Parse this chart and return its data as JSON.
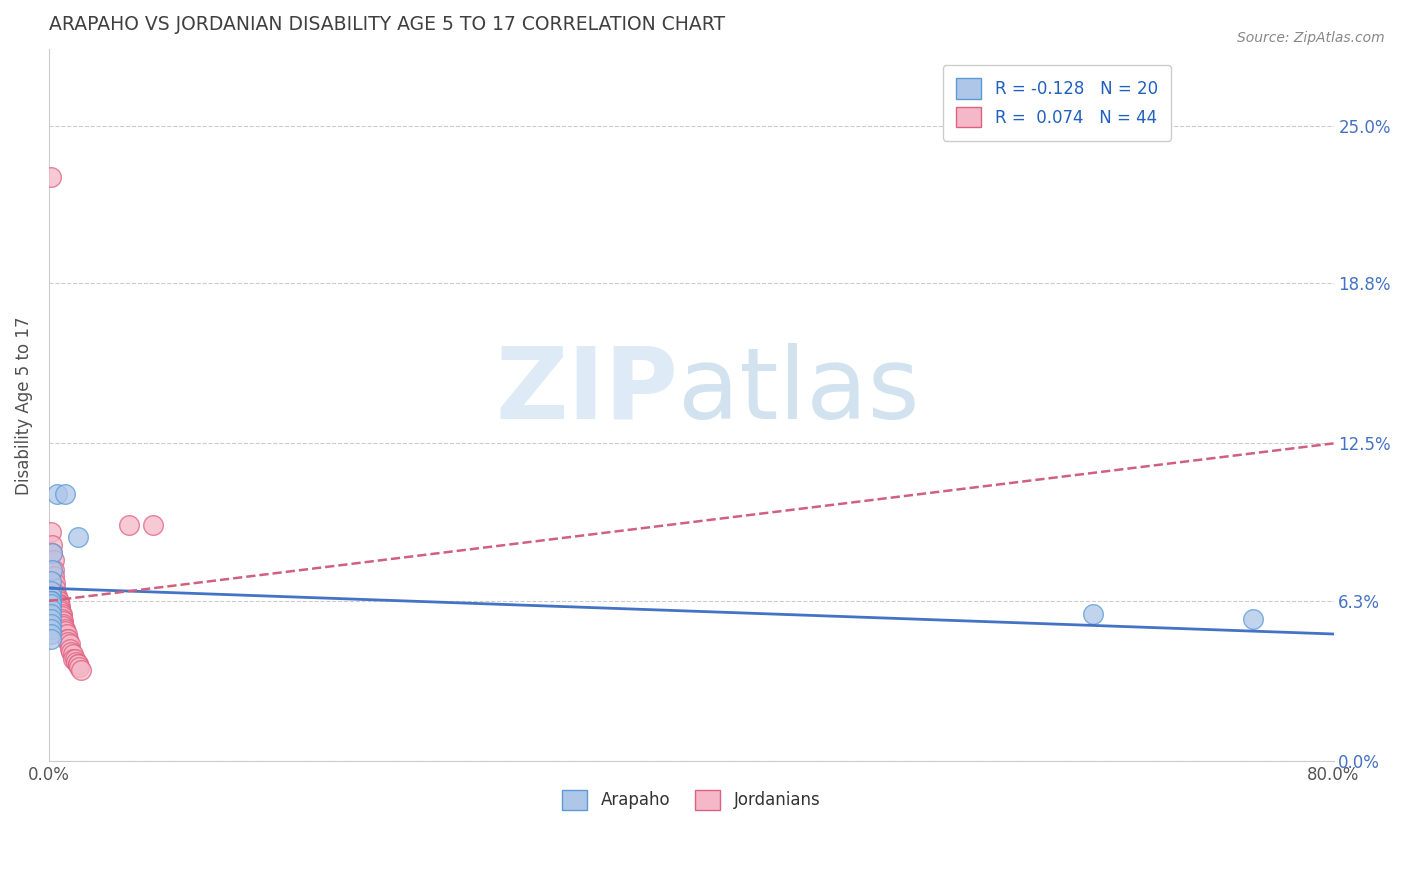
{
  "title": "ARAPAHO VS JORDANIAN DISABILITY AGE 5 TO 17 CORRELATION CHART",
  "source_text": "Source: ZipAtlas.com",
  "ylabel": "Disability Age 5 to 17",
  "xlim": [
    0.0,
    0.8
  ],
  "ylim": [
    0.0,
    0.28
  ],
  "yticks": [
    0.0,
    0.063,
    0.125,
    0.188,
    0.25
  ],
  "ytick_labels": [
    "0.0%",
    "6.3%",
    "12.5%",
    "18.8%",
    "25.0%"
  ],
  "xtick_labels": [
    "0.0%",
    "80.0%"
  ],
  "xtick_positions": [
    0.0,
    0.8
  ],
  "arapaho_scatter": [
    [
      0.005,
      0.105
    ],
    [
      0.01,
      0.105
    ],
    [
      0.018,
      0.088
    ],
    [
      0.002,
      0.082
    ],
    [
      0.002,
      0.075
    ],
    [
      0.001,
      0.071
    ],
    [
      0.001,
      0.067
    ],
    [
      0.001,
      0.065
    ],
    [
      0.001,
      0.063
    ],
    [
      0.001,
      0.063
    ],
    [
      0.001,
      0.063
    ],
    [
      0.001,
      0.063
    ],
    [
      0.001,
      0.062
    ],
    [
      0.001,
      0.06
    ],
    [
      0.001,
      0.058
    ],
    [
      0.001,
      0.056
    ],
    [
      0.001,
      0.054
    ],
    [
      0.001,
      0.052
    ],
    [
      0.001,
      0.05
    ],
    [
      0.001,
      0.048
    ],
    [
      0.65,
      0.058
    ],
    [
      0.75,
      0.056
    ]
  ],
  "jordanian_scatter": [
    [
      0.001,
      0.23
    ],
    [
      0.001,
      0.09
    ],
    [
      0.002,
      0.085
    ],
    [
      0.002,
      0.082
    ],
    [
      0.003,
      0.079
    ],
    [
      0.003,
      0.075
    ],
    [
      0.003,
      0.073
    ],
    [
      0.004,
      0.07
    ],
    [
      0.004,
      0.068
    ],
    [
      0.004,
      0.066
    ],
    [
      0.005,
      0.065
    ],
    [
      0.005,
      0.064
    ],
    [
      0.005,
      0.063
    ],
    [
      0.006,
      0.063
    ],
    [
      0.006,
      0.062
    ],
    [
      0.006,
      0.062
    ],
    [
      0.007,
      0.061
    ],
    [
      0.007,
      0.06
    ],
    [
      0.007,
      0.059
    ],
    [
      0.008,
      0.058
    ],
    [
      0.008,
      0.057
    ],
    [
      0.008,
      0.056
    ],
    [
      0.009,
      0.055
    ],
    [
      0.009,
      0.054
    ],
    [
      0.009,
      0.053
    ],
    [
      0.01,
      0.052
    ],
    [
      0.01,
      0.051
    ],
    [
      0.011,
      0.05
    ],
    [
      0.011,
      0.048
    ],
    [
      0.012,
      0.048
    ],
    [
      0.012,
      0.047
    ],
    [
      0.013,
      0.046
    ],
    [
      0.013,
      0.044
    ],
    [
      0.014,
      0.043
    ],
    [
      0.015,
      0.042
    ],
    [
      0.015,
      0.04
    ],
    [
      0.016,
      0.04
    ],
    [
      0.017,
      0.039
    ],
    [
      0.018,
      0.038
    ],
    [
      0.018,
      0.038
    ],
    [
      0.019,
      0.037
    ],
    [
      0.02,
      0.036
    ],
    [
      0.05,
      0.093
    ],
    [
      0.065,
      0.093
    ]
  ],
  "arapaho_color": "#aec6e8",
  "arapaho_edge_color": "#5b9bd5",
  "jordanian_color": "#f4b8c8",
  "jordanian_edge_color": "#e06080",
  "arapaho_line_color": "#4472c4",
  "jordanian_line_color": "#d06080",
  "arapaho_line": {
    "x0": 0.0,
    "y0": 0.068,
    "x1": 0.8,
    "y1": 0.05
  },
  "jordanian_line": {
    "x0": 0.0,
    "y0": 0.063,
    "x1": 0.8,
    "y1": 0.125
  },
  "watermark_zip": "ZIP",
  "watermark_atlas": "atlas",
  "background_color": "#ffffff",
  "grid_color": "#cccccc",
  "title_color": "#404040",
  "axis_label_color": "#505050",
  "right_tick_color": "#4472c4"
}
